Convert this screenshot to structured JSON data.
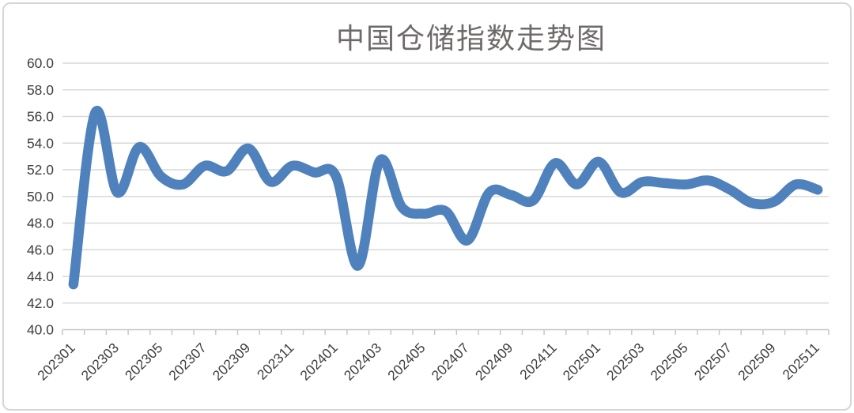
{
  "chart": {
    "title": "中国仓储指数走势图"
  },
  "chart_data": {
    "type": "line",
    "title": "中国仓储指数走势图",
    "series_name": "中国仓储指数",
    "x": [
      "202301",
      "202302",
      "202303",
      "202304",
      "202305",
      "202306",
      "202307",
      "202308",
      "202309",
      "202310",
      "202311",
      "202312",
      "202401",
      "202402",
      "202403",
      "202404",
      "202405",
      "202406",
      "202407",
      "202408",
      "202409",
      "202410",
      "202411",
      "202412",
      "202501",
      "202502",
      "202503",
      "202504",
      "202505",
      "202506",
      "202507",
      "202508",
      "202509",
      "202510",
      "202511"
    ],
    "values": [
      43.4,
      56.3,
      50.3,
      53.7,
      51.5,
      50.9,
      52.3,
      51.9,
      53.6,
      51.1,
      52.3,
      51.8,
      51.5,
      44.8,
      52.7,
      49.2,
      48.7,
      48.9,
      46.7,
      50.3,
      50.1,
      49.7,
      52.5,
      50.9,
      52.6,
      50.3,
      51.1,
      51.0,
      50.9,
      51.2,
      50.5,
      49.5,
      49.6,
      50.9,
      50.5
    ],
    "x_tick_labels_shown": [
      "202301",
      "202303",
      "202305",
      "202307",
      "202309",
      "202311",
      "202401",
      "202403",
      "202405",
      "202407",
      "202409",
      "202411",
      "202501",
      "202503",
      "202505",
      "202507",
      "202509",
      "202511"
    ],
    "y_tick_labels": [
      "60.0",
      "58.0",
      "56.0",
      "54.0",
      "52.0",
      "50.0",
      "48.0",
      "46.0",
      "44.0",
      "42.0",
      "40.0"
    ],
    "ylim": [
      40.0,
      60.0
    ],
    "y_tick_step": 2.0,
    "xlabel": "",
    "ylabel": "",
    "grid": true,
    "smooth_line": true,
    "legend": "none",
    "line_color": "#4f81bd",
    "title_color": "#6f6a6a",
    "axis_label_color": "#3f3f3f",
    "gridline_color": "#d9d9d9",
    "axis_line_color": "#c6c6c6",
    "frame_border_color": "#d8d5d5",
    "background_color": "#ffffff"
  }
}
